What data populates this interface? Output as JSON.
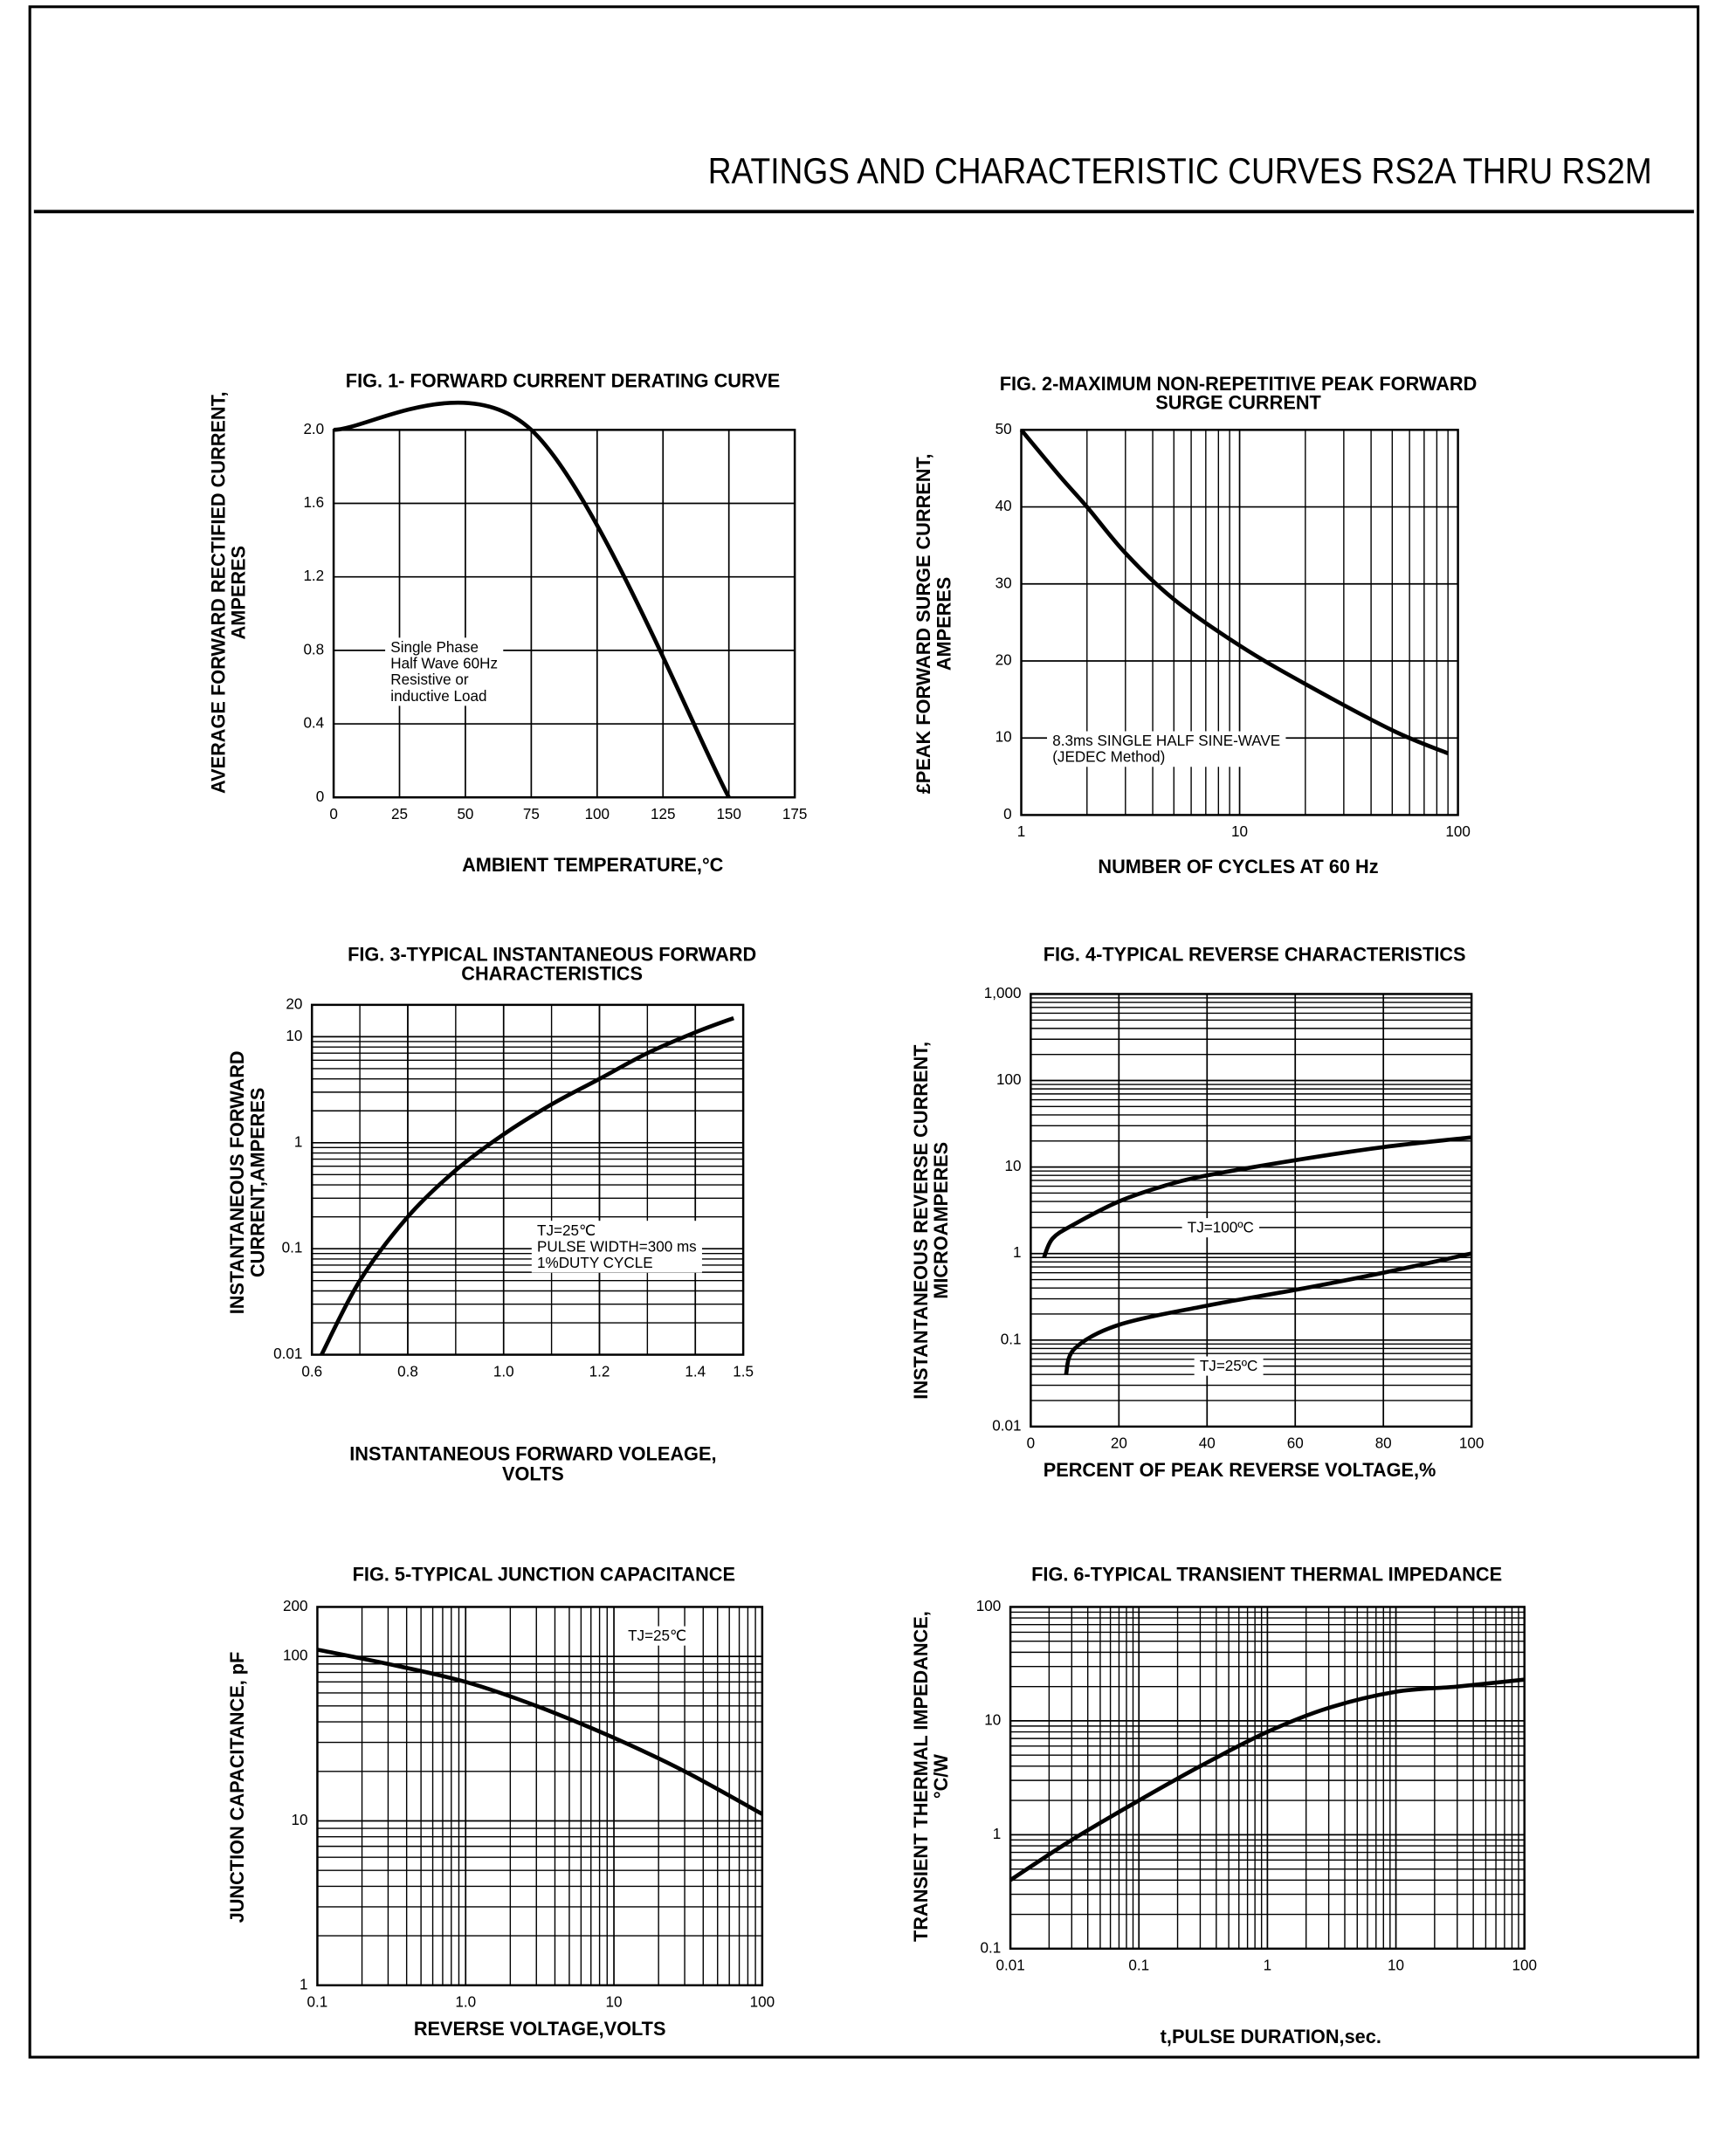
{
  "title": "RATINGS AND CHARACTERISTIC CURVES RS2A THRU RS2M",
  "chart_data": [
    {
      "type": "line",
      "title": [
        "FIG. 1- FORWARD CURRENT DERATING CURVE"
      ],
      "x_label": [
        "AMBIENT TEMPERATURE,°C"
      ],
      "y_label": [
        "AVERAGE FORWARD RECTIFIED CURRENT,",
        "AMPERES"
      ],
      "xscale": "linear",
      "yscale": "linear",
      "grid": true,
      "xlim": [
        0,
        175
      ],
      "xticks": [
        0,
        25,
        50,
        75,
        100,
        125,
        150,
        175
      ],
      "ylim": [
        0,
        2
      ],
      "yticks": [
        0,
        0.4,
        0.8,
        1.2,
        1.6,
        {
          "value": 2,
          "label": "2.0"
        }
      ],
      "annotation": [
        "Single Phase",
        "Half Wave 60Hz",
        "Resistive or",
        "inductive Load"
      ],
      "series": [
        {
          "color": "#000000",
          "x": [
            0,
            75,
            150
          ],
          "values": [
            2,
            2,
            0
          ]
        }
      ]
    },
    {
      "type": "line",
      "title": [
        "FIG. 2-MAXIMUM NON-REPETITIVE PEAK FORWARD",
        "SURGE CURRENT"
      ],
      "x_label": [
        "NUMBER OF CYCLES AT 60 Hz"
      ],
      "y_label": [
        "£PEAK  FORWARD SURGE CURRENT,",
        "AMPERES"
      ],
      "xscale": "log",
      "yscale": "linear",
      "grid": true,
      "xlim": [
        1,
        100
      ],
      "xticks": [
        1,
        10,
        100
      ],
      "ylim": [
        0,
        50
      ],
      "yticks": [
        0,
        10,
        20,
        30,
        40,
        50
      ],
      "annotation": [
        "8.3ms SINGLE HALF SINE-WAVE",
        "(JEDEC Method)"
      ],
      "series": [
        {
          "color": "#000000",
          "x": [
            1,
            1.5,
            2,
            3,
            5,
            10,
            20,
            50,
            90
          ],
          "values": [
            50,
            44,
            40,
            34,
            28,
            22,
            17,
            11,
            8
          ]
        }
      ]
    },
    {
      "type": "line",
      "title": [
        "FIG. 3-TYPICAL INSTANTANEOUS FORWARD",
        "CHARACTERISTICS"
      ],
      "x_label": [
        "INSTANTANEOUS FORWARD VOLEAGE,",
        "VOLTS"
      ],
      "y_label": [
        "INSTANTANEOUS FORWARD",
        "CURRENT,AMPERES"
      ],
      "xscale": "linear",
      "yscale": "log",
      "grid": true,
      "xlim": [
        0.6,
        1.5
      ],
      "xticks": [
        0.6,
        0.8,
        {
          "value": 1,
          "label": "1.0"
        },
        1.2,
        1.4,
        1.5
      ],
      "ylim": [
        0.01,
        20
      ],
      "yticks": [
        0.01,
        0.1,
        1,
        10,
        20
      ],
      "annotation": [
        "TJ=25℃",
        "PULSE WIDTH=300 ms",
        "1%DUTY CYCLE"
      ],
      "series": [
        {
          "color": "#000000",
          "x": [
            0.62,
            0.7,
            0.8,
            0.9,
            1.0,
            1.1,
            1.2,
            1.3,
            1.4,
            1.48
          ],
          "values": [
            0.01,
            0.05,
            0.2,
            0.55,
            1.2,
            2.3,
            4,
            7,
            11,
            15
          ]
        }
      ]
    },
    {
      "type": "line",
      "title": [
        "FIG. 4-TYPICAL REVERSE CHARACTERISTICS"
      ],
      "x_label": [
        "PERCENT OF PEAK REVERSE VOLTAGE,%"
      ],
      "y_label": [
        "INSTANTANEOUS REVERSE CURRENT,",
        "MICROAMPERES"
      ],
      "xscale": "linear",
      "yscale": "log",
      "grid": true,
      "xlim": [
        0,
        100
      ],
      "xticks": [
        0,
        20,
        40,
        60,
        80,
        100
      ],
      "ylim": [
        0.01,
        1000
      ],
      "yticks": [
        0.01,
        0.1,
        1,
        10,
        100,
        {
          "value": 1000,
          "label": "1,000"
        }
      ],
      "series": [
        {
          "name": "TJ=100ºC",
          "color": "#000000",
          "x": [
            3,
            5,
            10,
            20,
            30,
            40,
            60,
            80,
            100
          ],
          "values": [
            0.9,
            1.5,
            2.2,
            4,
            6,
            8,
            12,
            17,
            22
          ]
        },
        {
          "name": "TJ=25ºC",
          "color": "#000000",
          "x": [
            8,
            10,
            20,
            40,
            60,
            80,
            100
          ],
          "values": [
            0.04,
            0.08,
            0.15,
            0.25,
            0.38,
            0.6,
            1
          ]
        }
      ]
    },
    {
      "type": "line",
      "title": [
        "FIG. 5-TYPICAL JUNCTION CAPACITANCE"
      ],
      "x_label": [
        "REVERSE VOLTAGE,VOLTS"
      ],
      "y_label": [
        "JUNCTION CAPACITANCE, pF"
      ],
      "xscale": "log",
      "yscale": "log",
      "grid": true,
      "xlim": [
        0.1,
        100
      ],
      "xticks": [
        0.1,
        {
          "value": 1,
          "label": "1.0"
        },
        10,
        100
      ],
      "ylim": [
        1,
        200
      ],
      "yticks": [
        1,
        10,
        100,
        200
      ],
      "annotation": [
        "TJ=25℃"
      ],
      "series": [
        {
          "color": "#000000",
          "x": [
            0.1,
            0.3,
            1,
            3,
            10,
            30,
            100
          ],
          "values": [
            110,
            90,
            70,
            50,
            32,
            20,
            11
          ]
        }
      ]
    },
    {
      "type": "line",
      "title": [
        "FIG. 6-TYPICAL TRANSIENT THERMAL IMPEDANCE"
      ],
      "x_label": [
        "t,PULSE DURATION,sec."
      ],
      "y_label": [
        "TRANSIENT THERMAL IMPEDANCE,",
        "°C/W"
      ],
      "xscale": "log",
      "yscale": "log",
      "grid": true,
      "xlim": [
        0.01,
        100
      ],
      "xticks": [
        0.01,
        0.1,
        1,
        10,
        100
      ],
      "ylim": [
        0.1,
        100
      ],
      "yticks": [
        0.1,
        1,
        10,
        100
      ],
      "series": [
        {
          "color": "#000000",
          "x": [
            0.01,
            0.03,
            0.1,
            0.3,
            1,
            3,
            10,
            30,
            100
          ],
          "values": [
            0.4,
            0.9,
            2,
            4,
            8,
            13,
            18,
            20,
            23
          ]
        }
      ]
    }
  ]
}
